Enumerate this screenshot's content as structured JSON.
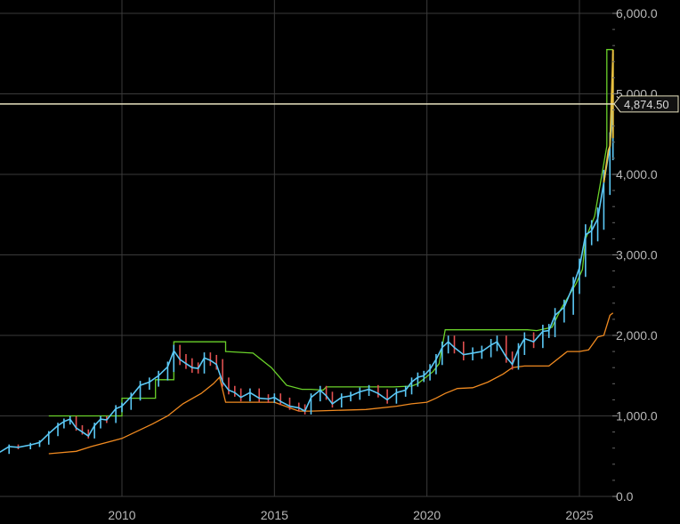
{
  "chart_data": {
    "type": "line",
    "title": "",
    "xlabel": "",
    "ylabel": "",
    "x_range": [
      2006.0,
      2026.5
    ],
    "ylim": [
      0,
      6000
    ],
    "grid": true,
    "y_tick_labels": [
      "0.0",
      "1,000.0",
      "2,000.0",
      "3,000.0",
      "4,000.0",
      "5,000.0",
      "6,000.0"
    ],
    "y_tick_values": [
      0,
      1000,
      2000,
      3000,
      4000,
      5000,
      6000
    ],
    "x_tick_labels": [
      "2010",
      "2015",
      "2020",
      "2025"
    ],
    "x_tick_values": [
      2010,
      2015,
      2020,
      2025
    ],
    "current_price": {
      "label": "4,874.50",
      "value": 4874.5
    },
    "colors": {
      "background": "#000000",
      "grid": "#3a3a3a",
      "price": "#5bc8f5",
      "price_down": "#e05050",
      "upper_band": "#6ad12a",
      "lower_band": "#f08a20",
      "recent_price": "#e8c040",
      "price_line": "#e8e2c0"
    },
    "series": [
      {
        "role": "price",
        "x": [
          2006.0,
          2006.3,
          2006.6,
          2007.0,
          2007.3,
          2007.6,
          2007.9,
          2008.1,
          2008.3,
          2008.5,
          2008.7,
          2008.9,
          2009.1,
          2009.3,
          2009.5,
          2009.8,
          2010.0,
          2010.3,
          2010.6,
          2010.9,
          2011.2,
          2011.5,
          2011.7,
          2011.9,
          2012.1,
          2012.3,
          2012.5,
          2012.7,
          2012.9,
          2013.1,
          2013.3,
          2013.5,
          2013.7,
          2013.9,
          2014.2,
          2014.5,
          2014.8,
          2015.0,
          2015.2,
          2015.5,
          2015.8,
          2016.0,
          2016.2,
          2016.5,
          2016.7,
          2016.9,
          2017.2,
          2017.5,
          2017.8,
          2018.1,
          2018.4,
          2018.7,
          2019.0,
          2019.3,
          2019.5,
          2019.7,
          2019.9,
          2020.1,
          2020.3,
          2020.5,
          2020.7,
          2020.9,
          2021.2,
          2021.5,
          2021.8,
          2022.1,
          2022.3,
          2022.6,
          2022.8,
          2023.0,
          2023.2,
          2023.5,
          2023.8,
          2024.0,
          2024.2,
          2024.5,
          2024.8,
          2025.0,
          2025.2,
          2025.4,
          2025.6,
          2025.8,
          2026.0,
          2026.1
        ],
        "values": [
          550,
          620,
          610,
          640,
          670,
          780,
          880,
          930,
          960,
          850,
          800,
          750,
          880,
          960,
          950,
          1090,
          1120,
          1240,
          1380,
          1420,
          1500,
          1610,
          1810,
          1700,
          1650,
          1600,
          1590,
          1720,
          1690,
          1640,
          1420,
          1320,
          1290,
          1230,
          1290,
          1220,
          1210,
          1230,
          1180,
          1120,
          1100,
          1060,
          1230,
          1320,
          1250,
          1150,
          1230,
          1250,
          1300,
          1330,
          1280,
          1200,
          1290,
          1320,
          1420,
          1480,
          1500,
          1580,
          1700,
          1850,
          1920,
          1850,
          1760,
          1780,
          1800,
          1880,
          1920,
          1730,
          1640,
          1830,
          1960,
          1920,
          2050,
          2060,
          2250,
          2350,
          2620,
          2840,
          3250,
          3300,
          3450,
          3900,
          4350,
          4874.5
        ]
      },
      {
        "role": "upper-band",
        "x": [
          2007.6,
          2010.0,
          2010.0,
          2011.1,
          2011.1,
          2011.7,
          2011.7,
          2013.4,
          2013.4,
          2014.3,
          2014.9,
          2015.4,
          2015.9,
          2016.2,
          2016.6,
          2016.7,
          2018.9,
          2019.5,
          2019.7,
          2020.2,
          2020.4,
          2020.6,
          2023.3,
          2023.6,
          2024.1,
          2024.4,
          2024.9,
          2025.1,
          2025.2,
          2025.5,
          2025.5,
          2025.9,
          2025.9,
          2026.1
        ],
        "values": [
          1000,
          1000,
          1220,
          1220,
          1450,
          1450,
          1920,
          1920,
          1800,
          1780,
          1600,
          1380,
          1330,
          1330,
          1320,
          1360,
          1360,
          1370,
          1400,
          1550,
          1650,
          2070,
          2070,
          2060,
          2100,
          2330,
          2650,
          2820,
          3200,
          3480,
          3480,
          4350,
          5550,
          5550
        ]
      },
      {
        "role": "lower-band",
        "x": [
          2007.6,
          2008.5,
          2009.0,
          2010.0,
          2011.0,
          2011.5,
          2012.0,
          2012.6,
          2013.0,
          2013.2,
          2013.4,
          2014.0,
          2015.0,
          2015.8,
          2016.2,
          2018.0,
          2019.0,
          2019.5,
          2020.0,
          2020.3,
          2020.6,
          2021.0,
          2021.5,
          2022.0,
          2022.5,
          2022.8,
          2023.2,
          2024.0,
          2024.6,
          2025.0,
          2025.3,
          2025.6,
          2025.8,
          2026.0,
          2026.1
        ],
        "values": [
          530,
          560,
          620,
          720,
          900,
          1000,
          1150,
          1280,
          1400,
          1480,
          1170,
          1170,
          1170,
          1060,
          1060,
          1080,
          1120,
          1150,
          1170,
          1220,
          1280,
          1340,
          1350,
          1420,
          1520,
          1600,
          1620,
          1620,
          1800,
          1800,
          1820,
          1980,
          2000,
          2250,
          2280
        ]
      }
    ]
  }
}
